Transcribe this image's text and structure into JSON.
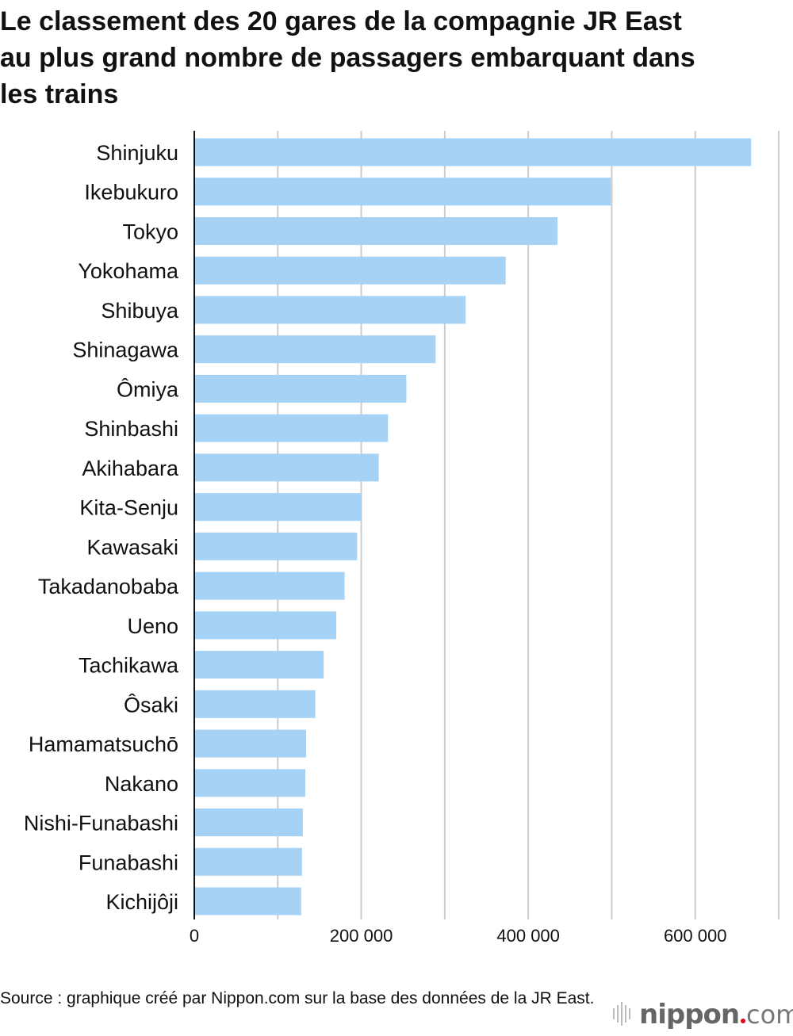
{
  "chart_data": {
    "type": "bar",
    "orientation": "horizontal",
    "title": "Le classement des 20 gares de la compagnie JR East au plus grand nombre de passagers embarquant dans les trains",
    "categories": [
      "Shinjuku",
      "Ikebukuro",
      "Tokyo",
      "Yokohama",
      "Shibuya",
      "Shinagawa",
      "Ômiya",
      "Shinbashi",
      "Akihabara",
      "Kita-Senju",
      "Kawasaki",
      "Takadanobaba",
      "Ueno",
      "Tachikawa",
      "Ôsaki",
      "Hamamatsuchō",
      "Nakano",
      "Nishi-Funabashi",
      "Funabashi",
      "Kichijôji"
    ],
    "values": [
      667000,
      499000,
      435000,
      373000,
      325000,
      289000,
      254000,
      232000,
      221000,
      200000,
      195000,
      180000,
      170000,
      155000,
      145000,
      134000,
      133000,
      130000,
      129000,
      128000
    ],
    "xlim": [
      0,
      700000
    ],
    "xticks": [
      0,
      200000,
      400000,
      600000
    ],
    "xtick_labels": [
      "0",
      "200 000",
      "400 000",
      "600 000"
    ],
    "gridlines": [
      100000,
      200000,
      300000,
      400000,
      500000,
      600000,
      700000
    ],
    "grid": true,
    "xlabel": "",
    "ylabel": "",
    "bar_color": "#a6d2f5",
    "grid_color": "#cccccc"
  },
  "source": "Source : graphique créé par Nippon.com sur la base des données de la JR East.",
  "logo": {
    "name": "nippon",
    "tld": ".com"
  }
}
